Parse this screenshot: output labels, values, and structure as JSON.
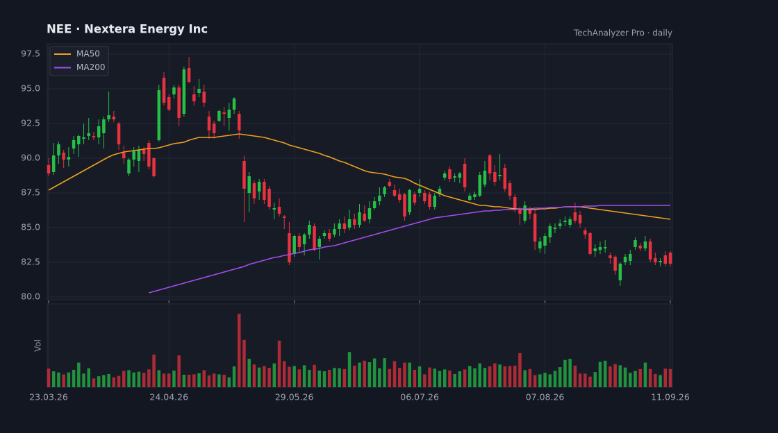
{
  "chart_data": {
    "type": "candlestick",
    "title": "NEE  ·  Nextera Energy Inc",
    "subtitle": "TechAnalyzer Pro · daily",
    "volume_label": "Vol",
    "legend": "upper left",
    "grid": true,
    "up_color": "#26c048",
    "down_color": "#e8323f",
    "ylim": [
      79.8,
      98.25
    ],
    "yticks": [
      {
        "value": 80,
        "label": "80.0"
      },
      82.5,
      {
        "value": 85,
        "label": "85.0"
      },
      87.5,
      {
        "value": 90,
        "label": "90.0"
      },
      92.5,
      {
        "value": 95,
        "label": "95.0"
      },
      97.5
    ],
    "vlim": [
      0,
      22
    ],
    "categories": [
      "23.03.26",
      null,
      null,
      null,
      null,
      null,
      null,
      null,
      null,
      null,
      null,
      null,
      null,
      null,
      null,
      null,
      null,
      null,
      null,
      null,
      null,
      null,
      null,
      null,
      "24.04.26",
      null,
      null,
      null,
      null,
      null,
      null,
      null,
      null,
      null,
      null,
      null,
      null,
      null,
      null,
      null,
      null,
      null,
      null,
      null,
      null,
      null,
      null,
      null,
      null,
      "29.05.26",
      null,
      null,
      null,
      null,
      null,
      null,
      null,
      null,
      null,
      null,
      null,
      null,
      null,
      null,
      null,
      null,
      null,
      null,
      null,
      null,
      null,
      null,
      null,
      null,
      "06.07.26",
      null,
      null,
      null,
      null,
      null,
      null,
      null,
      null,
      null,
      null,
      null,
      null,
      null,
      null,
      null,
      null,
      null,
      null,
      null,
      null,
      null,
      null,
      null,
      null,
      "07.08.26",
      null,
      null,
      null,
      null,
      null,
      null,
      null,
      null,
      null,
      null,
      null,
      null,
      null,
      null,
      null,
      null,
      null,
      null,
      null,
      null,
      null,
      null,
      null,
      null,
      "11.09.26"
    ],
    "open": [
      89.5,
      89.0,
      90.2,
      90.4,
      89.9,
      90.7,
      91.0,
      91.4,
      91.6,
      91.6,
      91.5,
      91.8,
      92.8,
      93.0,
      92.5,
      90.4,
      88.9,
      89.9,
      89.8,
      90.6,
      91.1,
      90.0,
      91.3,
      95.8,
      94.4,
      94.6,
      95.1,
      93.2,
      96.5,
      94.6,
      94.7,
      94.8,
      93.0,
      92.5,
      92.7,
      93.3,
      92.9,
      93.5,
      93.2,
      89.8,
      87.5,
      88.2,
      87.6,
      88.3,
      87.8,
      86.3,
      86.5,
      85.8,
      84.6,
      83.1,
      84.4,
      83.8,
      84.5,
      85.1,
      83.6,
      84.4,
      84.6,
      84.5,
      84.9,
      85.3,
      85.0,
      85.6,
      85.2,
      86.0,
      85.6,
      86.4,
      86.9,
      87.4,
      88.3,
      87.7,
      87.4,
      87.4,
      86.1,
      87.4,
      87.5,
      87.5,
      87.4,
      86.5,
      87.4,
      88.6,
      89.2,
      88.6,
      88.6,
      89.6,
      87.0,
      87.2,
      87.3,
      88.1,
      90.2,
      89.0,
      88.7,
      89.3,
      88.2,
      87.2,
      86.3,
      85.5,
      86.3,
      86.0,
      83.5,
      83.7,
      84.3,
      84.9,
      85.1,
      85.4,
      85.2,
      86.1,
      85.9,
      84.8,
      84.6,
      83.3,
      83.4,
      83.5,
      83.0,
      82.9,
      81.2,
      82.5,
      82.6,
      83.6,
      83.7,
      83.5,
      84.0,
      82.8,
      82.5,
      83.0,
      83.2
    ],
    "high": [
      90.0,
      91.1,
      91.2,
      90.6,
      90.8,
      91.6,
      91.7,
      92.5,
      92.9,
      91.9,
      92.8,
      93.0,
      94.8,
      93.4,
      92.6,
      90.9,
      90.0,
      90.8,
      90.9,
      90.8,
      91.3,
      90.1,
      95.3,
      96.2,
      94.6,
      95.3,
      95.3,
      96.6,
      97.3,
      95.2,
      95.7,
      95.3,
      93.4,
      92.7,
      93.5,
      93.7,
      94.0,
      94.4,
      93.4,
      90.2,
      89.0,
      88.4,
      88.5,
      88.5,
      88.0,
      86.8,
      87.1,
      85.9,
      85.4,
      84.5,
      84.6,
      84.6,
      85.5,
      85.3,
      84.4,
      84.8,
      84.9,
      85.3,
      85.6,
      85.8,
      86.3,
      86.0,
      86.7,
      86.6,
      86.9,
      87.2,
      87.9,
      88.0,
      88.5,
      88.1,
      87.8,
      87.5,
      87.8,
      87.6,
      88.5,
      87.7,
      87.6,
      87.5,
      88.0,
      89.1,
      89.4,
      88.9,
      89.0,
      90.0,
      87.5,
      87.6,
      89.0,
      89.8,
      90.3,
      89.5,
      90.3,
      89.6,
      88.4,
      87.4,
      86.5,
      86.9,
      86.5,
      86.3,
      84.3,
      84.6,
      85.3,
      85.3,
      85.6,
      85.8,
      85.8,
      86.8,
      86.2,
      85.0,
      84.7,
      83.8,
      84.0,
      84.1,
      83.2,
      83.0,
      82.5,
      83.1,
      83.4,
      84.3,
      83.9,
      84.4,
      84.2,
      83.2,
      82.8,
      83.3,
      83.3
    ],
    "low": [
      88.7,
      88.8,
      89.6,
      89.3,
      89.4,
      90.3,
      90.1,
      91.0,
      91.3,
      91.3,
      91.0,
      90.7,
      92.6,
      92.6,
      90.6,
      89.6,
      88.7,
      89.4,
      89.0,
      89.8,
      89.2,
      88.6,
      91.2,
      93.8,
      93.4,
      94.3,
      92.3,
      93.0,
      95.4,
      93.8,
      94.4,
      93.7,
      91.4,
      91.4,
      92.6,
      92.3,
      92.0,
      93.2,
      91.4,
      85.4,
      86.1,
      86.7,
      87.0,
      86.7,
      86.3,
      85.6,
      85.8,
      84.9,
      82.3,
      82.9,
      83.2,
      83.0,
      84.2,
      83.3,
      82.7,
      84.2,
      84.0,
      84.3,
      84.4,
      84.6,
      84.8,
      84.9,
      85.0,
      85.4,
      85.3,
      86.3,
      86.6,
      87.2,
      87.9,
      87.2,
      86.8,
      85.5,
      85.9,
      86.6,
      87.2,
      86.7,
      86.3,
      86.3,
      87.2,
      88.4,
      88.3,
      88.3,
      88.2,
      87.6,
      86.9,
      87.0,
      87.2,
      87.9,
      88.4,
      88.0,
      88.4,
      87.6,
      87.0,
      86.1,
      85.2,
      85.3,
      85.6,
      83.4,
      83.2,
      83.1,
      83.9,
      84.6,
      84.9,
      85.1,
      85.0,
      85.3,
      85.0,
      84.2,
      83.0,
      82.9,
      83.1,
      83.2,
      82.4,
      81.6,
      80.8,
      82.3,
      82.3,
      83.4,
      83.3,
      83.3,
      82.5,
      82.3,
      82.2,
      82.2,
      82.2
    ],
    "close": [
      88.9,
      90.2,
      91.0,
      89.9,
      90.1,
      91.3,
      91.6,
      91.5,
      91.8,
      91.5,
      92.3,
      92.8,
      93.1,
      92.8,
      91.0,
      90.0,
      89.9,
      90.5,
      90.6,
      90.3,
      89.4,
      88.7,
      94.9,
      94.0,
      93.5,
      95.1,
      92.9,
      96.4,
      95.5,
      94.1,
      95.0,
      94.0,
      92.0,
      91.8,
      93.4,
      93.2,
      93.5,
      94.3,
      92.0,
      87.8,
      88.7,
      87.1,
      88.3,
      87.0,
      86.5,
      86.4,
      86.0,
      85.7,
      82.5,
      84.4,
      83.6,
      84.5,
      85.2,
      83.4,
      84.2,
      84.6,
      84.2,
      84.9,
      85.3,
      84.9,
      85.6,
      85.2,
      86.1,
      85.5,
      86.4,
      86.9,
      87.3,
      87.9,
      88.0,
      87.3,
      87.0,
      85.8,
      87.7,
      86.8,
      87.8,
      86.9,
      86.5,
      87.3,
      87.8,
      88.9,
      88.5,
      88.7,
      88.9,
      87.9,
      87.3,
      87.4,
      88.8,
      89.1,
      88.9,
      88.3,
      88.8,
      87.8,
      87.3,
      86.3,
      86.0,
      86.6,
      86.0,
      84.0,
      84.0,
      84.4,
      85.1,
      85.0,
      85.3,
      85.5,
      85.6,
      85.5,
      85.3,
      84.5,
      83.1,
      83.5,
      83.6,
      83.6,
      82.8,
      81.9,
      82.4,
      82.9,
      83.1,
      84.1,
      83.5,
      84.0,
      82.7,
      82.5,
      82.6,
      82.4,
      82.4
    ],
    "volume": [
      4.9,
      4.2,
      3.9,
      3.4,
      3.9,
      4.6,
      6.5,
      3.6,
      5.0,
      2.3,
      2.9,
      3.2,
      3.5,
      2.6,
      3.0,
      4.3,
      4.5,
      3.9,
      4.1,
      3.8,
      4.7,
      8.6,
      4.5,
      3.6,
      3.6,
      4.4,
      8.4,
      3.3,
      3.3,
      3.4,
      3.7,
      4.5,
      3.1,
      3.6,
      3.4,
      3.3,
      2.6,
      5.5,
      19.4,
      12.5,
      7.5,
      6.0,
      5.2,
      5.6,
      5.1,
      6.3,
      12.3,
      6.9,
      5.4,
      5.6,
      4.7,
      5.8,
      4.6,
      5.9,
      4.4,
      4.2,
      4.6,
      5.1,
      5.0,
      4.8,
      9.3,
      5.7,
      6.5,
      7.0,
      6.6,
      7.6,
      5.0,
      7.7,
      4.8,
      6.9,
      5.1,
      6.5,
      6.5,
      4.6,
      5.5,
      3.4,
      5.2,
      4.9,
      4.3,
      4.7,
      4.4,
      3.5,
      4.2,
      4.7,
      5.6,
      5.0,
      6.3,
      5.1,
      5.5,
      6.3,
      6.0,
      5.5,
      5.6,
      5.7,
      9.0,
      4.5,
      4.8,
      3.2,
      3.4,
      3.8,
      3.4,
      4.3,
      5.3,
      7.2,
      7.5,
      5.7,
      3.6,
      3.6,
      2.8,
      4.0,
      6.7,
      7.0,
      5.5,
      6.1,
      5.8,
      5.2,
      3.8,
      4.3,
      4.8,
      6.5,
      4.8,
      3.5,
      3.2,
      4.9,
      4.8
    ],
    "series": [
      {
        "name": "MA50",
        "color": "#f0a020",
        "values": [
          87.7,
          87.9,
          88.1,
          88.3,
          88.5,
          88.7,
          88.9,
          89.1,
          89.3,
          89.5,
          89.7,
          89.9,
          90.1,
          90.25,
          90.35,
          90.45,
          90.5,
          90.55,
          90.6,
          90.65,
          90.7,
          90.7,
          90.75,
          90.85,
          90.95,
          91.05,
          91.1,
          91.15,
          91.3,
          91.4,
          91.5,
          91.5,
          91.5,
          91.5,
          91.55,
          91.6,
          91.65,
          91.7,
          91.75,
          91.7,
          91.65,
          91.6,
          91.55,
          91.5,
          91.4,
          91.3,
          91.2,
          91.1,
          90.95,
          90.85,
          90.75,
          90.65,
          90.55,
          90.45,
          90.35,
          90.2,
          90.1,
          89.95,
          89.8,
          89.7,
          89.55,
          89.4,
          89.25,
          89.1,
          89.0,
          88.95,
          88.9,
          88.85,
          88.75,
          88.65,
          88.6,
          88.55,
          88.4,
          88.2,
          88.05,
          87.9,
          87.75,
          87.6,
          87.45,
          87.3,
          87.2,
          87.1,
          87.0,
          86.9,
          86.8,
          86.7,
          86.6,
          86.6,
          86.55,
          86.5,
          86.5,
          86.45,
          86.4,
          86.35,
          86.35,
          86.3,
          86.3,
          86.3,
          86.35,
          86.35,
          86.4,
          86.4,
          86.45,
          86.5,
          86.5,
          86.5,
          86.5,
          86.45,
          86.4,
          86.35,
          86.3,
          86.25,
          86.2,
          86.15,
          86.1,
          86.05,
          86.0,
          85.95,
          85.9,
          85.85,
          85.8,
          85.75,
          85.7,
          85.65,
          85.6
        ]
      },
      {
        "name": "MA200",
        "color": "#a64cf0",
        "values": [
          null,
          null,
          null,
          null,
          null,
          null,
          null,
          null,
          null,
          null,
          null,
          null,
          null,
          null,
          null,
          null,
          null,
          null,
          null,
          null,
          80.3,
          80.4,
          80.5,
          80.6,
          80.7,
          80.8,
          80.9,
          81.0,
          81.1,
          81.2,
          81.3,
          81.4,
          81.5,
          81.6,
          81.7,
          81.8,
          81.9,
          82.0,
          82.1,
          82.2,
          82.35,
          82.45,
          82.55,
          82.65,
          82.75,
          82.85,
          82.9,
          83.0,
          83.05,
          83.15,
          83.2,
          83.3,
          83.4,
          83.45,
          83.5,
          83.6,
          83.65,
          83.7,
          83.8,
          83.9,
          84.0,
          84.1,
          84.2,
          84.3,
          84.4,
          84.5,
          84.6,
          84.7,
          84.8,
          84.9,
          85.0,
          85.1,
          85.2,
          85.3,
          85.4,
          85.5,
          85.6,
          85.7,
          85.75,
          85.8,
          85.85,
          85.9,
          85.95,
          86.0,
          86.05,
          86.1,
          86.15,
          86.2,
          86.2,
          86.25,
          86.25,
          86.3,
          86.3,
          86.3,
          86.35,
          86.35,
          86.35,
          86.4,
          86.4,
          86.4,
          86.45,
          86.45,
          86.45,
          86.5,
          86.5,
          86.5,
          86.5,
          86.55,
          86.55,
          86.55,
          86.6,
          86.6,
          86.6,
          86.6,
          86.6,
          86.6,
          86.6,
          86.6,
          86.6,
          86.6,
          86.6,
          86.6,
          86.6,
          86.6,
          86.6
        ]
      }
    ]
  }
}
